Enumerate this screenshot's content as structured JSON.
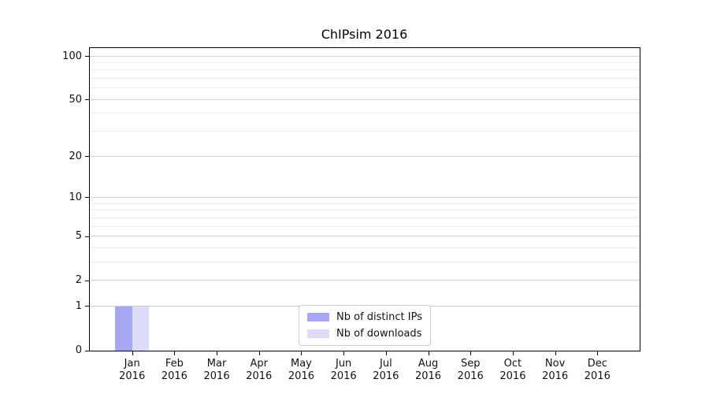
{
  "chart_data": {
    "type": "bar",
    "title": "ChIPsim 2016",
    "categories": [
      "Jan",
      "Feb",
      "Mar",
      "Apr",
      "May",
      "Jun",
      "Jul",
      "Aug",
      "Sep",
      "Oct",
      "Nov",
      "Dec"
    ],
    "year_label": "2016",
    "series": [
      {
        "name": "Nb of distinct IPs",
        "color": "#a6a6f2",
        "values": [
          1,
          0,
          0,
          0,
          0,
          0,
          0,
          0,
          0,
          0,
          0,
          0
        ]
      },
      {
        "name": "Nb of downloads",
        "color": "#dcdcf8",
        "values": [
          1,
          0,
          0,
          0,
          0,
          0,
          0,
          0,
          0,
          0,
          0,
          0
        ]
      }
    ],
    "y_axis": {
      "scale": "log1p",
      "ticks": [
        0,
        1,
        2,
        5,
        10,
        20,
        50,
        100
      ],
      "minor_ticks": [
        3,
        4,
        6,
        7,
        8,
        9,
        30,
        40,
        60,
        70,
        80,
        90
      ],
      "axis_max": 114,
      "ylim": [
        0,
        114
      ]
    },
    "x_axis": {
      "slots": 13,
      "bar_width_fraction": 0.4
    },
    "legend": {
      "position": "bottom-center"
    },
    "grid": {
      "major_color": "#d4d4d4",
      "minor_color": "#ececec",
      "unit_line_color": "#c9c9c9"
    }
  }
}
